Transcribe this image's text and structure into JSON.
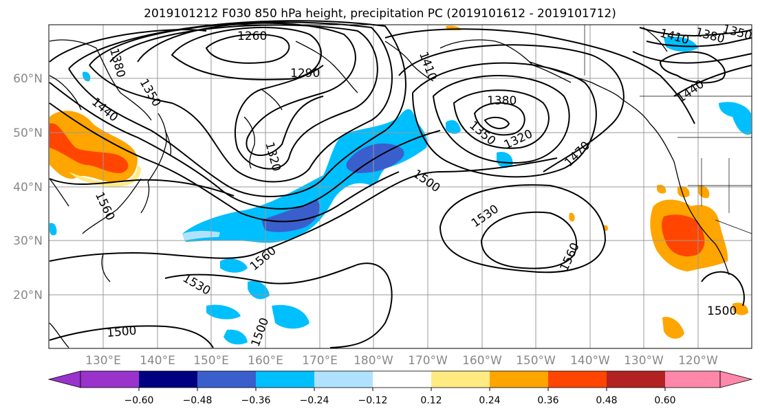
{
  "title": "2019101212 F030 850 hPa height, precipitation PC (2019101612 - 2019101712)",
  "map": {
    "lat_labels": [
      "60°N",
      "50°N",
      "40°N",
      "30°N",
      "20°N"
    ],
    "lon_labels": [
      "130°E",
      "140°E",
      "150°E",
      "160°E",
      "170°E",
      "180°W",
      "170°W",
      "160°W",
      "150°W",
      "140°W",
      "130°W",
      "120°W"
    ],
    "contour_labels": [
      "1260",
      "1290",
      "1380",
      "1350",
      "1440",
      "1320",
      "1560",
      "1410",
      "1380",
      "1350",
      "1320",
      "1470",
      "1500",
      "1530",
      "1560",
      "1560",
      "1530",
      "1500",
      "1410",
      "1380",
      "1350",
      "1440",
      "1500",
      "1500"
    ]
  },
  "colorbar": {
    "ticks": [
      "−0.60",
      "−0.48",
      "−0.36",
      "−0.24",
      "−0.12",
      "0.12",
      "0.24",
      "0.36",
      "0.48",
      "0.60"
    ],
    "colors": [
      "#9933cc",
      "#000080",
      "#3a5fcd",
      "#00bfff",
      "#b0e2ff",
      "#ffffff",
      "#ffeb82",
      "#ffa500",
      "#ff4500",
      "#b22222",
      "#ff88aa"
    ]
  }
}
